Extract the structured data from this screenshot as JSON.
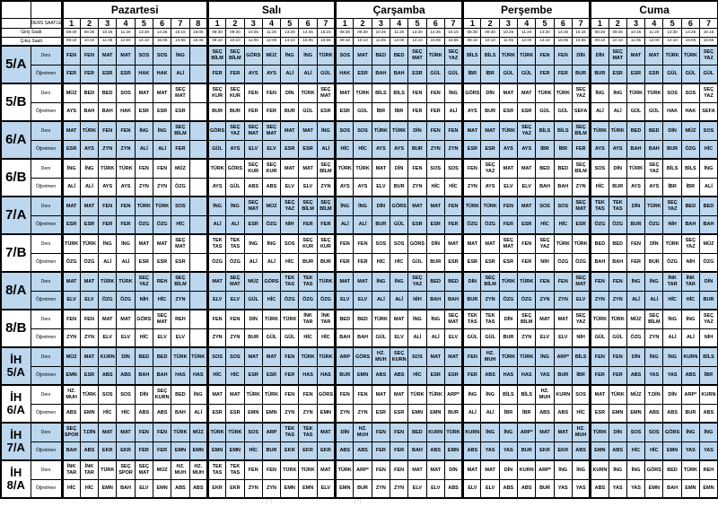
{
  "labels": {
    "schedule_header": "DERS SAATLERİ",
    "entry": "Giriş Saati",
    "exit": "Çıkış Saati",
    "lesson": "Ders",
    "teacher": "Öğretmen"
  },
  "footer": "(*)                                      (*)",
  "colors": {
    "band_shade": "#bdd7ee",
    "grid": "#000000"
  },
  "days": [
    {
      "label": "Pazartesi",
      "periods": 8,
      "entry": [
        "08:30",
        "09:30",
        "10:25",
        "11:20",
        "13:30",
        "14:25",
        "15:15",
        "16:05"
      ],
      "exit": [
        "09:10",
        "10:10",
        "11:05",
        "12:00",
        "14:10",
        "15:05",
        "15:55",
        "16:45"
      ]
    },
    {
      "label": "Salı",
      "periods": 7,
      "entry": [
        "08:30",
        "09:30",
        "10:25",
        "11:20",
        "13:30",
        "14:25",
        "15:15"
      ],
      "exit": [
        "09:10",
        "10:10",
        "11:05",
        "12:00",
        "14:10",
        "15:05",
        "15:55"
      ]
    },
    {
      "label": "Çarşamba",
      "periods": 7,
      "entry": [
        "08:30",
        "09:30",
        "10:25",
        "11:20",
        "13:30",
        "14:25",
        "15:15"
      ],
      "exit": [
        "09:10",
        "10:10",
        "11:05",
        "12:00",
        "14:10",
        "15:05",
        "15:55"
      ]
    },
    {
      "label": "Perşembe",
      "periods": 7,
      "entry": [
        "08:30",
        "09:30",
        "10:25",
        "11:20",
        "13:30",
        "14:25",
        "15:15"
      ],
      "exit": [
        "09:10",
        "10:10",
        "11:05",
        "12:00",
        "14:10",
        "15:05",
        "15:55"
      ]
    },
    {
      "label": "Cuma",
      "periods": 7,
      "entry": [
        "08:30",
        "09:30",
        "10:25",
        "11:20",
        "13:30",
        "14:25",
        "15:15"
      ],
      "exit": [
        "09:10",
        "10:10",
        "11:05",
        "12:00",
        "14:10",
        "15:05",
        "15:55"
      ]
    }
  ],
  "classes": [
    {
      "name": [
        "5/A"
      ],
      "shaded": true,
      "days": [
        [
          "FEN|FER",
          "FEN|FER",
          "MAT|ESR",
          "MAT|ESR",
          "SOS|HAK",
          "SOS|HAK",
          "İNG|ALİ",
          ""
        ],
        [
          "SEÇ BİLM|FER",
          "SEÇ BİLM|FER",
          "GÖRS|AYS",
          "MÜZ|AYS",
          "İNG|ALİ",
          "İNG|ALİ",
          "TÜRK|GÜL"
        ],
        [
          "SOS|HAK",
          "MAT|ESR",
          "BED|BAH",
          "BED|BAH",
          "SEÇ MAT|ESR",
          "TÜRK|GÜL",
          "SEÇ YAZ|GÜL"
        ],
        [
          "BİLS|İBR",
          "BİLS|İBR",
          "TÜRK|GÜL",
          "TÜRK|GÜL",
          "FEN|FER",
          "FEN|FER",
          "DİN|BUR"
        ],
        [
          "DİN|BUR",
          "SEÇ MAT|ESR",
          "MAT|ESR",
          "MAT|ESR",
          "TÜRK|GÜL",
          "TÜRK|GÜL",
          "SEÇ YAZ|GÜL"
        ]
      ]
    },
    {
      "name": [
        "5/B"
      ],
      "shaded": false,
      "days": [
        [
          "MÜZ|AYS",
          "BED|BAH",
          "BED|BAH",
          "SOS|HAK",
          "MAT|ESR",
          "MAT|ESR",
          "SEÇ MAT|ESR",
          ""
        ],
        [
          "SEÇ KUR|BUR",
          "SEÇ KUR|BUR",
          "FEN|FER",
          "FEN|FER",
          "DİN|BUR",
          "TÜRK|GÜL",
          "SEÇ MAT|ESR"
        ],
        [
          "MAT|ESR",
          "TÜRK|GÜL",
          "BİLS|İBR",
          "BİLS|İBR",
          "FEN|FER",
          "FEN|FER",
          "İNG|ALİ"
        ],
        [
          "GÖRS|AYS",
          "DİN|BUR",
          "MAT|ESR",
          "MAT|ESR",
          "TÜRK|GÜL",
          "TÜRK|GÜL",
          "SEÇ YAZ|SEFA"
        ],
        [
          "İNG|ALİ",
          "İNG|ALİ",
          "TÜRK|GÜL",
          "TÜRK|GÜL",
          "SOS|HAK",
          "SOS|HAK",
          "SEÇ YAZ|SEFA"
        ]
      ]
    },
    {
      "name": [
        "6/A"
      ],
      "shaded": true,
      "days": [
        [
          "MAT|ESR",
          "TÜRK|AYS",
          "FEN|ZYN",
          "FEN|ZYN",
          "İNG|ALİ",
          "İNG|ALİ",
          "SEÇ BİLM|FER",
          ""
        ],
        [
          "GÖRS|GÜL",
          "SEÇ YAZ|AYS",
          "SEÇ MAT|ELV",
          "SEÇ MAT|ELV",
          "MAT|ESR",
          "MAT|ESR",
          "İNG|ALİ"
        ],
        [
          "SOS|HİC",
          "SOS|HİC",
          "TÜRK|AYS",
          "TÜRK|AYS",
          "DİN|BUR",
          "FEN|ZYN",
          "FEN|ZYN"
        ],
        [
          "MAT|ESR",
          "MAT|ESR",
          "TÜRK|AYS",
          "SEÇ YAZ|AYS",
          "BİLS|İBR",
          "BİLS|İBR",
          "SEÇ BİLM|FER"
        ],
        [
          "TÜRK|AYS",
          "TÜRK|AYS",
          "BED|BAH",
          "BED|BAH",
          "DİN|BUR",
          "MÜZ|ÖZG",
          "SOS|HİC"
        ]
      ]
    },
    {
      "name": [
        "6/B"
      ],
      "shaded": false,
      "days": [
        [
          "İNG|ALİ",
          "İNG|ALİ",
          "TÜRK|AYS",
          "TÜRK|AYS",
          "FEN|ZYN",
          "FEN|ZYN",
          "MÜZ|ÖZG",
          ""
        ],
        [
          "TÜRK|AYS",
          "GÖRS|GÜL",
          "SEÇ KUR|ABS",
          "SEÇ KUR|ABS",
          "MAT|ELV",
          "MAT|ELV",
          "SEÇ BİLM|ZYN"
        ],
        [
          "TÜRK|AYS",
          "TÜRK|AYS",
          "MAT|ELV",
          "DİN|BUR",
          "FEN|ZYN",
          "SOS|HİC",
          "SOS|HİC"
        ],
        [
          "FEN|ZYN",
          "SEÇ YAZ|AYS",
          "MAT|ELV",
          "MAT|ELV",
          "BED|BAH",
          "BED|BAH",
          "SEÇ BİLM|ZYN"
        ],
        [
          "SOS|HİC",
          "DİN|BUR",
          "TÜRK|AYS",
          "SEÇ YAZ|AYS",
          "BİLS|İBR",
          "BİLS|İBR",
          "İNG|ALİ"
        ]
      ]
    },
    {
      "name": [
        "7/A"
      ],
      "shaded": true,
      "days": [
        [
          "MAT|ESR",
          "MAT|ESR",
          "FEN|FER",
          "FEN|FER",
          "TÜRK|ÖZG",
          "TÜRK|ÖZG",
          "SOS|HİC",
          ""
        ],
        [
          "İNG|ALİ",
          "İNG|ALİ",
          "SEÇ MAT|ESR",
          "MÜZ|ÖZG",
          "SEÇ YAZ|NİH",
          "SEÇ BİLM|FER",
          "SEÇ BİLM|FER"
        ],
        [
          "İNG|ALİ",
          "İNG|ALİ",
          "DİN|BUR",
          "GÖRS|GÜL",
          "MAT|ESR",
          "MAT|ESR",
          "FEN|FER"
        ],
        [
          "TÜRK|ÖZG",
          "TÜRK|ÖZG",
          "FEN|FER",
          "MAT|ESR",
          "SOS|HİC",
          "SOS|HİC",
          "SEÇ MAT|ESR"
        ],
        [
          "TEK TAS|ÖZG",
          "TEK TAS|ÖZG",
          "DİN|BUR",
          "TÜRK|ÖZG",
          "SEÇ YAZ|NİH",
          "BED|BAH",
          "BED|BAH"
        ]
      ]
    },
    {
      "name": [
        "7/B"
      ],
      "shaded": false,
      "days": [
        [
          "TÜRK|ÖZG",
          "TÜRK|ÖZG",
          "İNG|ALİ",
          "İNG|ALİ",
          "MAT|ESR",
          "MAT|ESR",
          "SEÇ MAT|ESR",
          ""
        ],
        [
          "TEK TAS|ÖZG",
          "TEK TAS|ÖZG",
          "İNG|ALİ",
          "İNG|ALİ",
          "SOS|HİC",
          "SEÇ KUR|BUR",
          "SEÇ KUR|BUR"
        ],
        [
          "FEN|FER",
          "FEN|FER",
          "SOS|HİC",
          "SOS|HİC",
          "GÖRS|GÜL",
          "DİN|BUR",
          "MAT|ESR"
        ],
        [
          "MAT|ESR",
          "MAT|ESR",
          "SEÇ MAT|ESR",
          "FEN|FER",
          "SEÇ YAZ|NİH",
          "TÜRK|ÖZG",
          "TÜRK|ÖZG"
        ],
        [
          "BED|BAH",
          "BED|BAH",
          "FEN|FER",
          "DİN|BUR",
          "TÜRK|ÖZG",
          "SEÇ YAZ|NİH",
          "MÜZ|ÖZG"
        ]
      ]
    },
    {
      "name": [
        "8/A"
      ],
      "shaded": true,
      "days": [
        [
          "MAT|ELV",
          "MAT|ELV",
          "TÜRK|ÖZG",
          "TÜRK|ÖZG",
          "SEÇ YAZ|NİH",
          "REH|HİC",
          "SEÇ BİLM|ZYN",
          ""
        ],
        [
          "MAT|ELV",
          "SEÇ MAT|ELV",
          "MÜZ|GÜL",
          "GÖRS|HİC",
          "TEK TAS|ÖZG",
          "TEK TAS|ÖZG",
          "TÜRK|ÖZG"
        ],
        [
          "MAT|ELV",
          "MAT|ELV",
          "İNG|ALİ",
          "İNG|ALİ",
          "SEÇ YAZ|NİH",
          "BED|BAH",
          "BED|BAH"
        ],
        [
          "DİN|BUR",
          "SEÇ BİLM|ZYN",
          "TÜRK|ÖZG",
          "TÜRK|ÖZG",
          "FEN|ZYN",
          "FEN|ZYN",
          "SEÇ MAT|ELV"
        ],
        [
          "FEN|ZYN",
          "FEN|ZYN",
          "İNG|ALİ",
          "İNG|ALİ",
          "İNK TAR|HİC",
          "İNK TAR|HİC",
          "DİN|BUR"
        ]
      ]
    },
    {
      "name": [
        "8/B"
      ],
      "shaded": false,
      "days": [
        [
          "FEN|ZYN",
          "FEN|ZYN",
          "MAT|ELV",
          "MAT|ELV",
          "GÖRS|HİC",
          "SEÇ MAT|ELV",
          "REH|ELV",
          ""
        ],
        [
          "FEN|ZYN",
          "FEN|ZYN",
          "DİN|BUR",
          "TÜRK|GÜL",
          "TÜRK|GÜL",
          "İNK TAR|HİC",
          "İNK TAR|HİC"
        ],
        [
          "BED|BAH",
          "BED|BAH",
          "TÜRK|GÜL",
          "MAT|ELV",
          "İNG|ALİ",
          "İNG|ALİ",
          "SEÇ MAT|ELV"
        ],
        [
          "TEK TAS|GÜL",
          "TEK TAS|GÜL",
          "DİN|BUR",
          "SEÇ BİLM|ZYN",
          "MAT|ELV",
          "MAT|ELV",
          "SEÇ YAZ|NİH"
        ],
        [
          "TÜRK|GÜL",
          "TÜRK|GÜL",
          "MÜZ|ÖZG",
          "SEÇ BİLM|ZYN",
          "İNG|ALİ",
          "İNG|ALİ",
          "SEÇ YAZ|NİH"
        ]
      ]
    },
    {
      "name": [
        "İH",
        "5/A"
      ],
      "shaded": true,
      "days": [
        [
          "MÜZ|EMN",
          "MAT|ESR",
          "KURN|ABS",
          "DİN|ABS",
          "BED|BAH",
          "BED|BAH",
          "TÜRK|HAS",
          "TÜRK|HAS"
        ],
        [
          "SOS|HİC",
          "SOS|HİC",
          "MAT|ESR",
          "MAT|ESR",
          "FEN|FER",
          "TÜRK|HAS",
          "TÜRK|HAS"
        ],
        [
          "ARP|BUR",
          "GÖRS|EMN",
          "HZ. MUH|ABS",
          "SEÇ KURN|ABS",
          "SOS|HİC",
          "MAT|ESR",
          "MAT|ESR"
        ],
        [
          "FEN|FER",
          "HZ. MUH|ABS",
          "TÜRK|HAS",
          "TÜRK|HAS",
          "İNG|YAS",
          "ARP*|BUR",
          "BİLS|İBR"
        ],
        [
          "FEN|FER",
          "FEN|FER",
          "DİN|ABS",
          "İNG|YAS",
          "İNG|YAS",
          "KURN|ABS",
          "BİLS|İBR"
        ]
      ]
    },
    {
      "name": [
        "İH",
        "6/A"
      ],
      "shaded": false,
      "days": [
        [
          "HZ. MUH|ABS",
          "TÜRK|EMN",
          "SOS|HİC",
          "SOS|HİC",
          "DİN|ABS",
          "SEÇ KURN|ABS",
          "BED|BAH",
          "İNG|ALİ"
        ],
        [
          "MAT|ESR",
          "MAT|ESR",
          "TÜRK|EMN",
          "TÜRK|EMN",
          "FEN|ZYN",
          "FEN|ZYN",
          "GÖRS|EMN"
        ],
        [
          "FEN|ZYN",
          "FEN|ZYN",
          "MAT|ESR",
          "MAT|ESR",
          "TÜRK|EMN",
          "TÜRK|EMN",
          "ARP*|BUR"
        ],
        [
          "İNG|ALİ",
          "İNG|ALİ",
          "BİLS|İBR",
          "BİLS|İBR",
          "HZ. MUH|ABS",
          "KURN|ABS",
          "SOS|HİC"
        ],
        [
          "MAT|ESR",
          "TÜRK|EMN",
          "MÜZ|EMN",
          "T.DİN|ABS",
          "DİN|ABS",
          "ARP*|BUR",
          "KURN|ABS"
        ]
      ]
    },
    {
      "name": [
        "İH",
        "7/A"
      ],
      "shaded": true,
      "days": [
        [
          "SEÇ SPOR|BAH",
          "T.DİN|ABS",
          "MAT|EKR",
          "MAT|EKR",
          "FEN|FER",
          "FEN|FER",
          "TÜRK|EMN",
          "MÜZ|EMN"
        ],
        [
          "TÜRK|EMN",
          "TÜRK|EMN",
          "SOS|HİC",
          "ARP|BUR",
          "TEK TAS|EKR",
          "TEK TAS|EKR",
          "MAT|EKR"
        ],
        [
          "DİN|ABS",
          "HZ. MUH|ABS",
          "FEN|FER",
          "FEN|FER",
          "BED|BAH",
          "KURN|ABS",
          "TÜRK|EMN"
        ],
        [
          "KURN|ABS",
          "İNG|YAS",
          "İNG|YAS",
          "ARP*|BUR",
          "MAT|EKR",
          "MAT|EKR",
          "HZ. MUH|ABS"
        ],
        [
          "TÜRK|EMN",
          "DİN|ABS",
          "SOS|HİC",
          "SOS|HİC",
          "GÖRS|EMN",
          "İNG|YAS",
          "İNG|YAS"
        ]
      ]
    },
    {
      "name": [
        "İH",
        "8/A"
      ],
      "shaded": false,
      "days": [
        [
          "İNK TAR|HİC",
          "İNK TAR|HİC",
          "TÜRK|EMN",
          "SEÇ SPOR|BAH",
          "SEÇ MAT|ELV",
          "MÜZ|EMN",
          "HZ. MUH|ABS",
          "HZ. MUH|ABS"
        ],
        [
          "TEK TAS|EKR",
          "TEK TAS|EKR",
          "FEN|ZYN",
          "FEN|ZYN",
          "TÜRK|EMN",
          "TÜRK|EMN",
          "MAT|ELV"
        ],
        [
          "TÜRK|EMN",
          "ARP*|BUR",
          "FEN|ZYN",
          "FEN|ZYN",
          "MAT|ELV",
          "MAT|ELV",
          "DİN|ABS"
        ],
        [
          "MAT|ELV",
          "MAT|ELV",
          "DİN|ABS",
          "KURN|ABS",
          "ARP*|BUR",
          "İNG|YAS",
          "İNG|YAS"
        ],
        [
          "KURN|ABS",
          "İNG|YAS",
          "İNG|YAS",
          "GÖRS|EMN",
          "BED|BAH",
          "TÜRK|EMN",
          "REH|EMN"
        ]
      ]
    }
  ]
}
